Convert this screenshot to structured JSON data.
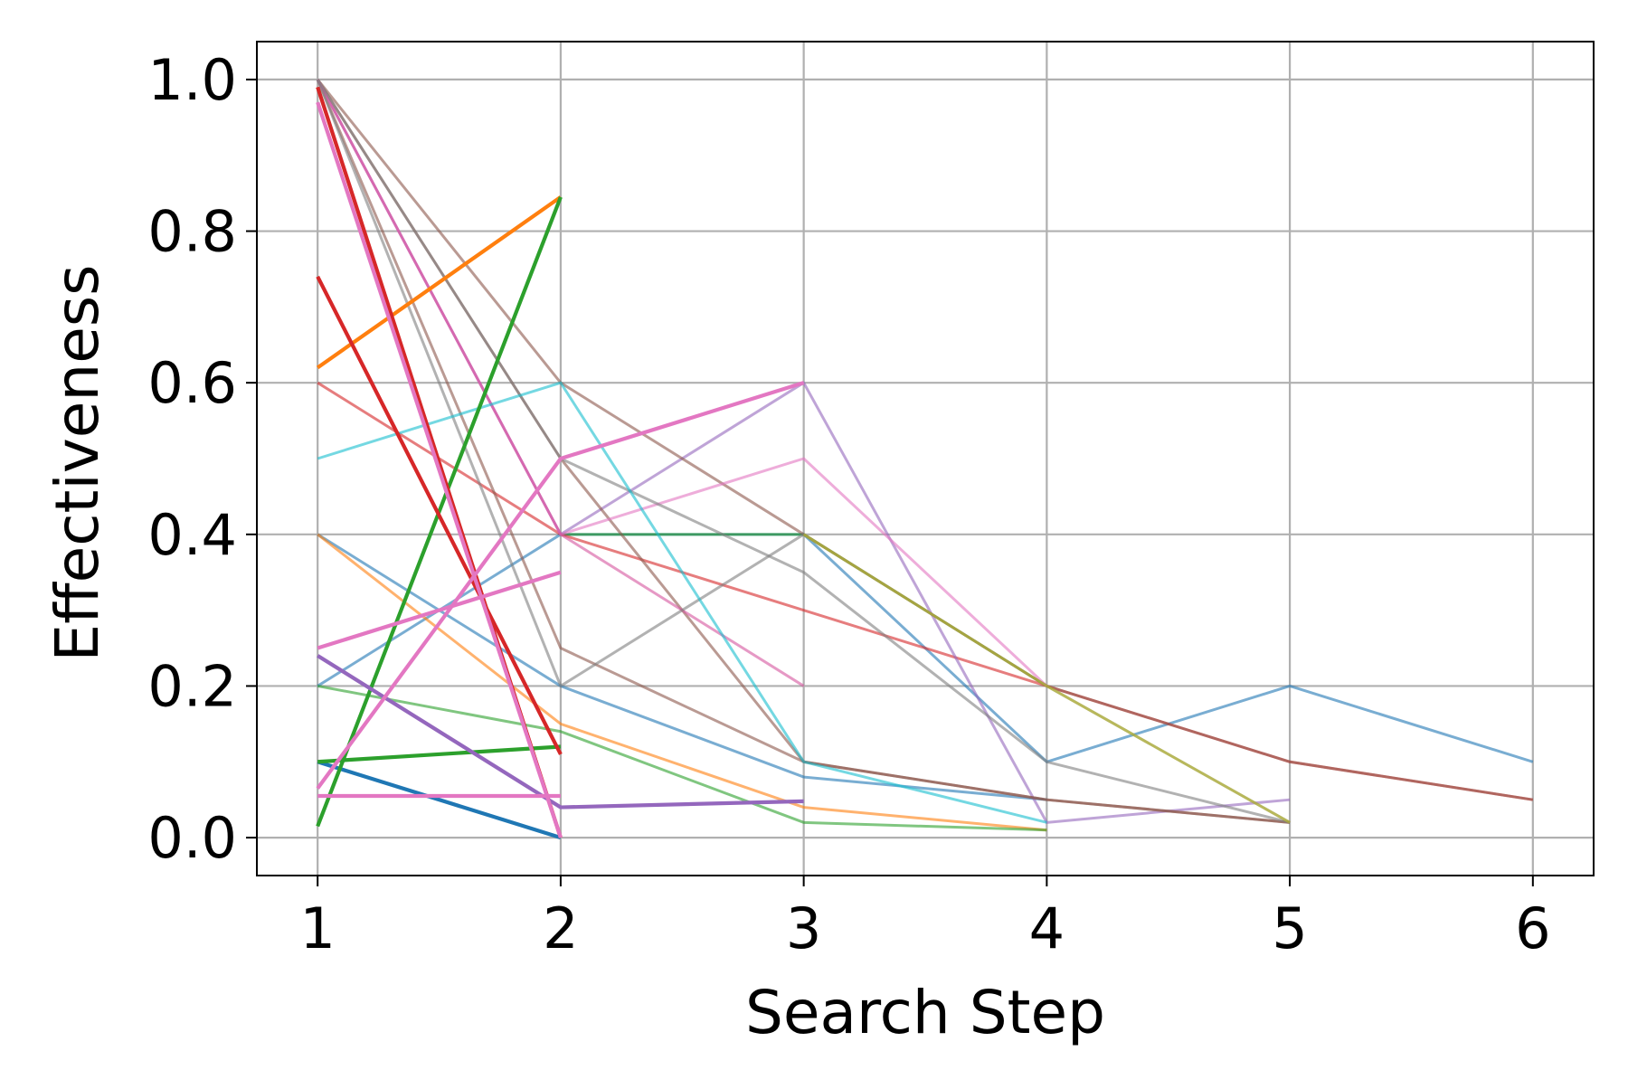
{
  "chart_data": {
    "type": "line",
    "title": "",
    "xlabel": "Search Step",
    "ylabel": "Effectiveness",
    "xlim": [
      0.75,
      6.25
    ],
    "ylim": [
      -0.05,
      1.05
    ],
    "xticks": [
      "1",
      "2",
      "3",
      "4",
      "5",
      "6"
    ],
    "yticks": [
      "0.0",
      "0.2",
      "0.4",
      "0.6",
      "0.8",
      "1.0"
    ],
    "grid": true,
    "legend": "none",
    "series": [
      {
        "color": "#1f77b4",
        "emphasis": "bold",
        "x": [
          1,
          2
        ],
        "values": [
          0.1,
          0.0
        ]
      },
      {
        "color": "#ff7f0e",
        "emphasis": "bold",
        "x": [
          1,
          2
        ],
        "values": [
          0.62,
          0.845
        ]
      },
      {
        "color": "#2ca02c",
        "emphasis": "bold",
        "x": [
          1,
          2
        ],
        "values": [
          0.015,
          0.845
        ]
      },
      {
        "color": "#2ca02c",
        "emphasis": "bold",
        "x": [
          1,
          2
        ],
        "values": [
          0.1,
          0.12
        ]
      },
      {
        "color": "#d62728",
        "emphasis": "bold",
        "x": [
          1,
          2
        ],
        "values": [
          0.99,
          0.0
        ]
      },
      {
        "color": "#d62728",
        "emphasis": "bold",
        "x": [
          1,
          2
        ],
        "values": [
          0.74,
          0.11
        ]
      },
      {
        "color": "#9467bd",
        "emphasis": "bold",
        "x": [
          1,
          2,
          3
        ],
        "values": [
          0.24,
          0.04,
          0.048
        ]
      },
      {
        "color": "#e377c2",
        "emphasis": "bold",
        "x": [
          1,
          2
        ],
        "values": [
          0.97,
          0.0
        ]
      },
      {
        "color": "#e377c2",
        "emphasis": "bold",
        "x": [
          1,
          2
        ],
        "values": [
          0.25,
          0.35
        ]
      },
      {
        "color": "#e377c2",
        "emphasis": "bold",
        "x": [
          1,
          2,
          3
        ],
        "values": [
          0.065,
          0.5,
          0.6
        ]
      },
      {
        "color": "#e377c2",
        "emphasis": "bold",
        "x": [
          1,
          2
        ],
        "values": [
          0.055,
          0.055
        ]
      },
      {
        "color": "#1f77b4",
        "emphasis": "faint",
        "x": [
          1,
          2,
          3,
          4,
          5,
          6
        ],
        "values": [
          0.2,
          0.4,
          0.4,
          0.1,
          0.2,
          0.1
        ]
      },
      {
        "color": "#1f77b4",
        "emphasis": "faint",
        "x": [
          1,
          2,
          3,
          4
        ],
        "values": [
          0.4,
          0.2,
          0.08,
          0.05
        ]
      },
      {
        "color": "#ff7f0e",
        "emphasis": "faint",
        "x": [
          1,
          2,
          3,
          4
        ],
        "values": [
          0.4,
          0.15,
          0.04,
          0.01
        ]
      },
      {
        "color": "#2ca02c",
        "emphasis": "faint",
        "x": [
          1,
          2,
          3,
          4
        ],
        "values": [
          0.2,
          0.14,
          0.02,
          0.01
        ]
      },
      {
        "color": "#2ca02c",
        "emphasis": "faint",
        "x": [
          2,
          3,
          4
        ],
        "values": [
          0.4,
          0.4,
          0.2
        ]
      },
      {
        "color": "#d62728",
        "emphasis": "faint",
        "x": [
          1,
          2,
          3,
          4,
          5,
          6
        ],
        "values": [
          0.6,
          0.4,
          0.3,
          0.2,
          0.1,
          0.05
        ]
      },
      {
        "color": "#9467bd",
        "emphasis": "faint",
        "x": [
          1,
          2,
          3,
          4,
          5
        ],
        "values": [
          1.0,
          0.4,
          0.6,
          0.02,
          0.05
        ]
      },
      {
        "color": "#8c564b",
        "emphasis": "faint",
        "x": [
          1,
          2,
          3,
          4,
          5,
          6
        ],
        "values": [
          1.0,
          0.6,
          0.4,
          0.2,
          0.1,
          0.05
        ]
      },
      {
        "color": "#8c564b",
        "emphasis": "faint",
        "x": [
          1,
          2,
          3,
          4,
          5
        ],
        "values": [
          1.0,
          0.5,
          0.1,
          0.05,
          0.02
        ]
      },
      {
        "color": "#8c564b",
        "emphasis": "faint",
        "x": [
          1,
          2,
          3,
          4,
          5
        ],
        "values": [
          1.0,
          0.25,
          0.1,
          0.05,
          0.02
        ]
      },
      {
        "color": "#e377c2",
        "emphasis": "faint",
        "x": [
          1,
          2,
          3,
          4
        ],
        "values": [
          1.0,
          0.4,
          0.5,
          0.2
        ]
      },
      {
        "color": "#d6559e",
        "emphasis": "faint",
        "x": [
          1,
          2,
          3
        ],
        "values": [
          1.0,
          0.4,
          0.2
        ]
      },
      {
        "color": "#7f7f7f",
        "emphasis": "faint",
        "x": [
          1,
          2,
          3,
          4,
          5
        ],
        "values": [
          1.0,
          0.2,
          0.4,
          0.2,
          0.02
        ]
      },
      {
        "color": "#7f7f7f",
        "emphasis": "faint",
        "x": [
          1,
          2,
          3,
          4,
          5
        ],
        "values": [
          1.0,
          0.5,
          0.35,
          0.1,
          0.02
        ]
      },
      {
        "color": "#bcbd22",
        "emphasis": "faint",
        "x": [
          3,
          4,
          5
        ],
        "values": [
          0.4,
          0.2,
          0.02
        ]
      },
      {
        "color": "#17becf",
        "emphasis": "faint",
        "x": [
          1,
          2,
          3,
          4
        ],
        "values": [
          0.5,
          0.6,
          0.1,
          0.02
        ]
      }
    ]
  }
}
